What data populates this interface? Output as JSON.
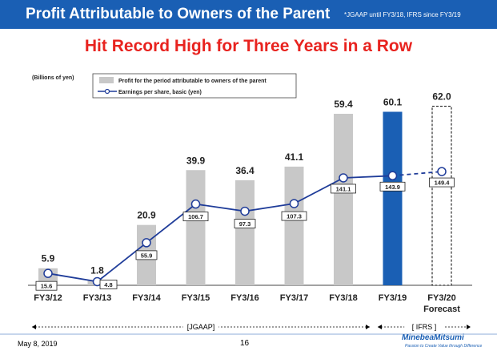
{
  "header": {
    "title": "Profit Attributable to Owners of the Parent",
    "note": "*JGAAP until FY3/18, IFRS since FY3/19",
    "color": "#1a5fb4"
  },
  "subtitle": "Hit Record High for Three Years in a Row",
  "chart_data": {
    "type": "bar",
    "unit_label": "(Billions of yen)",
    "categories": [
      "FY3/12",
      "FY3/13",
      "FY3/14",
      "FY3/15",
      "FY3/16",
      "FY3/17",
      "FY3/18",
      "FY3/19",
      "FY3/20"
    ],
    "category_sub": [
      "",
      "",
      "",
      "",
      "",
      "",
      "",
      "",
      "Forecast"
    ],
    "series": [
      {
        "name": "Profit for the period attributable to owners of the parent",
        "type": "bar",
        "values": [
          5.9,
          1.8,
          20.9,
          39.9,
          36.4,
          41.1,
          59.4,
          60.1,
          62.0
        ],
        "labels": [
          "5.9",
          "1.8",
          "20.9",
          "39.9",
          "36.4",
          "41.1",
          "59.4",
          "60.1",
          "62.0"
        ],
        "colors": [
          "#c8c8c8",
          "#c8c8c8",
          "#c8c8c8",
          "#c8c8c8",
          "#c8c8c8",
          "#c8c8c8",
          "#c8c8c8",
          "#1a5fb4",
          "forecast-dashed"
        ]
      },
      {
        "name": "Earnings per share, basic (yen)",
        "type": "line",
        "values": [
          15.6,
          4.8,
          55.9,
          106.7,
          97.3,
          107.3,
          141.1,
          143.9,
          149.4
        ],
        "labels": [
          "15.6",
          "4.8",
          "55.9",
          "106.7",
          "97.3",
          "107.3",
          "141.1",
          "143.9",
          "149.4"
        ],
        "color": "#1f3c99"
      }
    ],
    "y_range_profit": [
      0,
      68
    ],
    "y_range_eps": [
      0,
      300
    ],
    "accounting_periods": [
      {
        "label": "[JGAAP]",
        "start_index": 0,
        "end_index": 6
      },
      {
        "label": "[ IFRS ]",
        "start_index": 7,
        "end_index": 8
      }
    ]
  },
  "footer": {
    "date": "May 8, 2019",
    "page": "16",
    "logo": "MinebeaMitsumi",
    "tagline": "Passion to Create Value through Difference"
  }
}
